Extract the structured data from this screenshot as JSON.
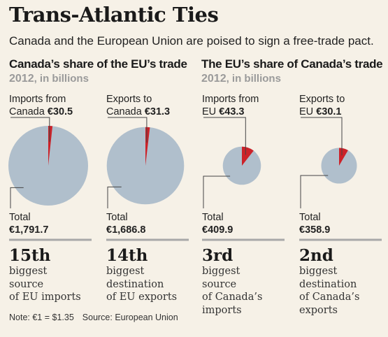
{
  "title": "Trans-Atlantic Ties",
  "subtitle": "Canada and the European Union are poised to sign a free-trade pact.",
  "note": "Note: €1 = $1.35",
  "source": "Source: European Union",
  "colors": {
    "share": "#cc2229",
    "rest": "#b0bfcc",
    "leader": "#444444",
    "rule": "#a8a8a8"
  },
  "sections": [
    {
      "title": "Canada’s share of the EU’s trade",
      "year": "2012",
      "unit": ", in billions"
    },
    {
      "title": "The EU’s share of Canada’s trade",
      "year": "2012",
      "unit": ", in billions"
    }
  ],
  "chart_data": {
    "type": "pie",
    "currency": "€",
    "unit": "billions",
    "year": 2012,
    "charts": [
      {
        "label_line1": "Imports from",
        "label_line2": "Canada",
        "share_text": "€30.5",
        "share": 30.5,
        "total_label": "Total",
        "total_text": "€1,791.7",
        "total": 1791.7,
        "rank": "15th",
        "desc": [
          "biggest",
          "source",
          "of EU imports"
        ]
      },
      {
        "label_line1": "Exports to",
        "label_line2": "Canada",
        "share_text": "€31.3",
        "share": 31.3,
        "total_label": "Total",
        "total_text": "€1,686.8",
        "total": 1686.8,
        "rank": "14th",
        "desc": [
          "biggest",
          "destination",
          "of EU exports"
        ]
      },
      {
        "label_line1": "Imports from",
        "label_line2": "EU",
        "share_text": "€43.3",
        "share": 43.3,
        "total_label": "Total",
        "total_text": "€409.9",
        "total": 409.9,
        "rank": "3rd",
        "desc": [
          "biggest",
          "source",
          "of Canada’s",
          "imports"
        ]
      },
      {
        "label_line1": "Exports to",
        "label_line2": "EU",
        "share_text": "€30.1",
        "share": 30.1,
        "total_label": "Total",
        "total_text": "€358.9",
        "total": 358.9,
        "rank": "2nd",
        "desc": [
          "biggest",
          "destination",
          "of Canada’s",
          "exports"
        ]
      }
    ]
  }
}
